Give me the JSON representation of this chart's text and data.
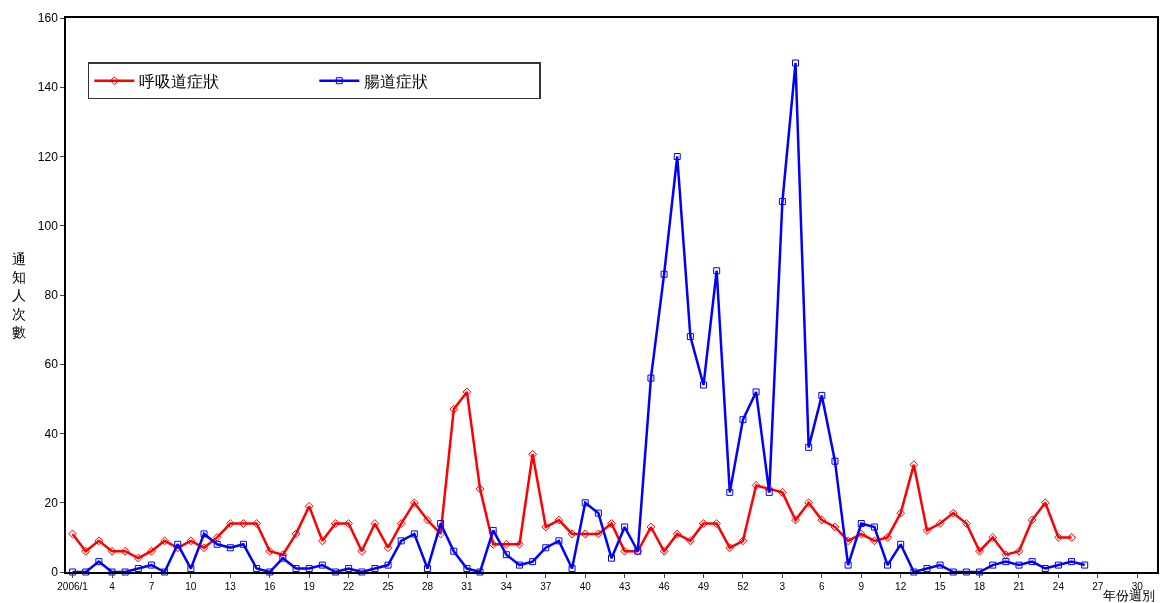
{
  "chart_data": {
    "type": "line",
    "xlabel": "年份週別",
    "ylabel": "通知人次數",
    "categories": [
      "2006/1",
      null,
      null,
      "4",
      null,
      null,
      "7",
      null,
      null,
      "10",
      null,
      null,
      "13",
      null,
      null,
      "16",
      null,
      null,
      "19",
      null,
      null,
      "22",
      null,
      null,
      "25",
      null,
      null,
      "28",
      null,
      null,
      "31",
      null,
      null,
      "34",
      null,
      null,
      "37",
      null,
      null,
      "40",
      null,
      null,
      "43",
      null,
      null,
      "46",
      null,
      null,
      "49",
      null,
      null,
      "52",
      null,
      null,
      "3",
      null,
      null,
      "6",
      null,
      null,
      "9",
      null,
      null,
      "12",
      null,
      null,
      "15",
      null,
      null,
      "18",
      null,
      null,
      "21",
      null,
      null,
      "24",
      null,
      null,
      "27",
      null,
      null,
      "30",
      null
    ],
    "series": [
      {
        "name": "呼吸道症狀",
        "color": "#ff0000",
        "marker": "diamond",
        "values": [
          11,
          6,
          9,
          6,
          6,
          4,
          6,
          9,
          7,
          9,
          7,
          10,
          14,
          14,
          14,
          6,
          5,
          11,
          19,
          9,
          14,
          14,
          6,
          14,
          7,
          14,
          20,
          15,
          11,
          47,
          52,
          24,
          8,
          8,
          8,
          34,
          13,
          15,
          11,
          11,
          11,
          14,
          6,
          6,
          13,
          6,
          11,
          9,
          14,
          14,
          7,
          9,
          25,
          24,
          23,
          15,
          20,
          15,
          13,
          9,
          11,
          9,
          10,
          17,
          31,
          12,
          14,
          17,
          14,
          6,
          10,
          5,
          6,
          15,
          20,
          10,
          10,
          null,
          null,
          null,
          null,
          null,
          null
        ]
      },
      {
        "name": "腸道症狀",
        "color": "#0000ff",
        "marker": "square",
        "values": [
          0,
          0,
          3,
          0,
          0,
          1,
          2,
          0,
          8,
          1,
          11,
          8,
          7,
          8,
          1,
          0,
          4,
          1,
          1,
          2,
          0,
          1,
          0,
          1,
          2,
          9,
          11,
          1,
          14,
          6,
          1,
          0,
          12,
          5,
          2,
          3,
          7,
          9,
          1,
          20,
          17,
          4,
          13,
          6,
          56,
          86,
          120,
          68,
          54,
          87,
          23,
          44,
          52,
          23,
          107,
          147,
          36,
          51,
          32,
          2,
          14,
          13,
          2,
          8,
          0,
          1,
          2,
          0,
          0,
          0,
          2,
          3,
          2,
          3,
          1,
          2,
          3,
          2,
          null,
          null,
          null,
          null,
          null
        ]
      }
    ],
    "ylim": [
      0,
      160
    ],
    "yticks": [
      0,
      20,
      40,
      60,
      80,
      100,
      120,
      140,
      160
    ],
    "grid": false,
    "legend": "top left",
    "line_style": "solid"
  }
}
